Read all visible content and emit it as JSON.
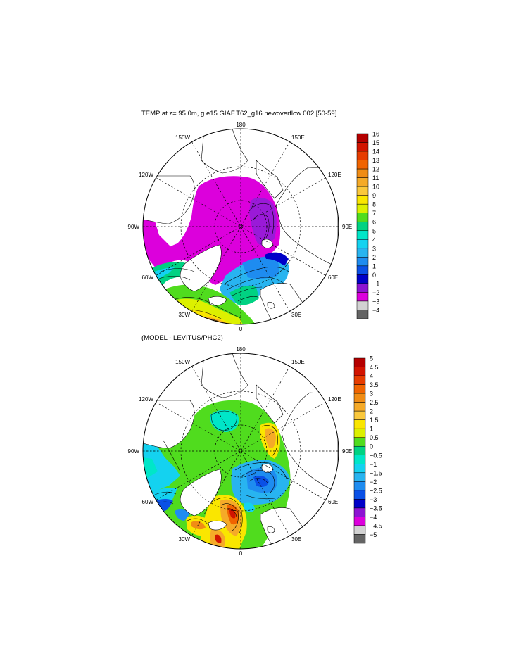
{
  "panels": [
    {
      "title": "TEMP at z=  95.0m, g.e15.GIAF.T62_g16.newoverflow.002 [50-59]",
      "lon_labels": {
        "top": "180",
        "bottom": "0",
        "left": "90W",
        "right": "90E",
        "ul1": "150W",
        "ul2": "120W",
        "ur1": "150E",
        "ur2": "120E",
        "ll1": "60W",
        "ll2": "30W",
        "lr1": "60E",
        "lr2": "30E"
      },
      "colorbar": {
        "labels": [
          "16",
          "15",
          "14",
          "13",
          "12",
          "11",
          "10",
          "9",
          "8",
          "7",
          "6",
          "5",
          "4",
          "3",
          "2",
          "1",
          "0",
          "−1",
          "−2",
          "−3",
          "−4"
        ],
        "colors": [
          "#b40000",
          "#d21400",
          "#e63c00",
          "#f06400",
          "#f08c14",
          "#f5aa28",
          "#fac83c",
          "#fae600",
          "#dcf000",
          "#50dc1e",
          "#00d282",
          "#00e6c8",
          "#14d2f0",
          "#28b4f0",
          "#1e8cf0",
          "#0a50e6",
          "#0000c8",
          "#8c14d2",
          "#dc00dc",
          "#d2d2d2",
          "#646464"
        ]
      },
      "colors": {
        "land": "#ffffff",
        "arctic": "#dc00dc",
        "deep": "#9a1ad8",
        "cold": "#1e8cf0",
        "warm": "#f5aa28",
        "green": "#50dc1e"
      }
    },
    {
      "title": "(MODEL - LEVITUS/PHC2)",
      "lon_labels": {
        "top": "180",
        "bottom": "0",
        "left": "90W",
        "right": "90E",
        "ul1": "150W",
        "ul2": "120W",
        "ur1": "150E",
        "ur2": "120E",
        "ll1": "60W",
        "ll2": "30W",
        "lr1": "60E",
        "lr2": "30E"
      },
      "colorbar": {
        "labels": [
          "5",
          "4.5",
          "4",
          "3.5",
          "3",
          "2.5",
          "2",
          "1.5",
          "1",
          "0.5",
          "0",
          "−0.5",
          "−1",
          "−1.5",
          "−2",
          "−2.5",
          "−3",
          "−3.5",
          "−4",
          "−4.5",
          "−5"
        ],
        "colors": [
          "#b40000",
          "#d21400",
          "#e63c00",
          "#f06400",
          "#f08c14",
          "#f5aa28",
          "#fac83c",
          "#fae600",
          "#dcf000",
          "#50dc1e",
          "#00d282",
          "#00e6c8",
          "#14d2f0",
          "#28b4f0",
          "#1e8cf0",
          "#0a50e6",
          "#0000c8",
          "#8c14d2",
          "#dc00dc",
          "#d2d2d2",
          "#646464"
        ]
      },
      "colors": {
        "land": "#ffffff",
        "base": "#50dc1e",
        "cyan": "#14d2f0",
        "yellow": "#fae600",
        "orange": "#f5aa28",
        "blue": "#1e8cf0"
      }
    }
  ]
}
